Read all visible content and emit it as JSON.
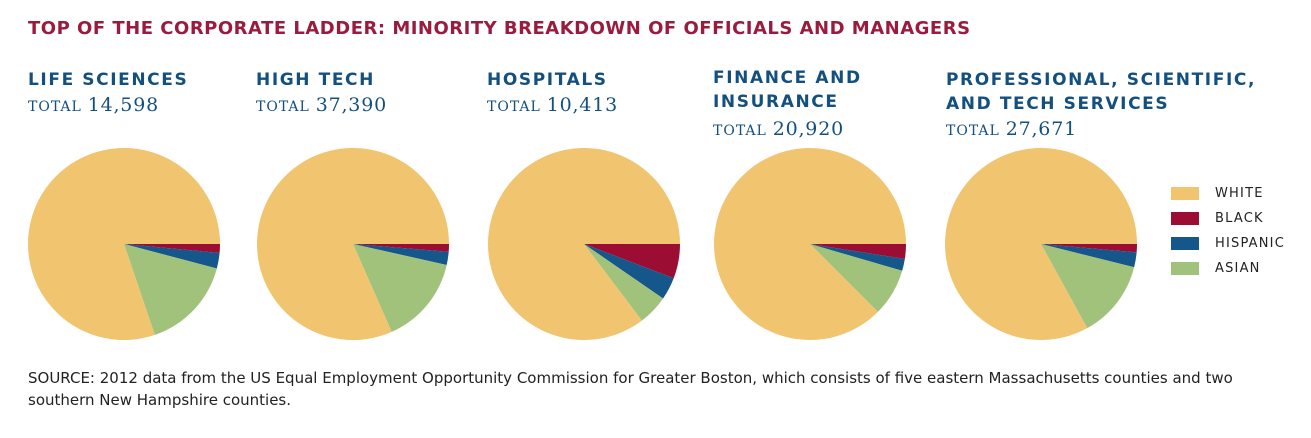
{
  "title": "TOP OF THE CORPORATE LADDER: MINORITY BREAKDOWN OF OFFICIALS AND MANAGERS",
  "total_label": "TOTAL",
  "colors": {
    "White": "#f1c46f",
    "Black": "#9b0d33",
    "Hispanic": "#15578b",
    "Asian": "#a1c27b"
  },
  "legend": {
    "items": [
      {
        "name": "White",
        "label": "WHITE",
        "color": "#f1c46f"
      },
      {
        "name": "Black",
        "label": "BLACK",
        "color": "#9b0d33"
      },
      {
        "name": "Hispanic",
        "label": "HISPANIC",
        "color": "#15578b"
      },
      {
        "name": "Asian",
        "label": "ASIAN",
        "color": "#a1c27b"
      }
    ],
    "placement": "right"
  },
  "chart_data": [
    {
      "type": "pie",
      "title": "LIFE SCIENCES",
      "title_lines": [
        "LIFE SCIENCES"
      ],
      "total": "14,598",
      "categories": [
        "White",
        "Black",
        "Hispanic",
        "Asian"
      ],
      "values": [
        80.2,
        1.5,
        2.6,
        15.7
      ]
    },
    {
      "type": "pie",
      "title": "HIGH TECH",
      "title_lines": [
        "HIGH TECH"
      ],
      "total": "37,390",
      "categories": [
        "White",
        "Black",
        "Hispanic",
        "Asian"
      ],
      "values": [
        81.6,
        1.3,
        2.2,
        14.9
      ]
    },
    {
      "type": "pie",
      "title": "HOSPITALS",
      "title_lines": [
        "HOSPITALS"
      ],
      "total": "10,413",
      "categories": [
        "White",
        "Black",
        "Hispanic",
        "Asian"
      ],
      "values": [
        85.3,
        5.8,
        3.8,
        5.1
      ]
    },
    {
      "type": "pie",
      "title": "FINANCE AND INSURANCE",
      "title_lines": [
        "FINANCE AND",
        "INSURANCE"
      ],
      "total": "20,920",
      "categories": [
        "White",
        "Black",
        "Hispanic",
        "Asian"
      ],
      "values": [
        87.5,
        2.5,
        2.0,
        8.0
      ]
    },
    {
      "type": "pie",
      "title": "PROFESSIONAL, SCIENTIFIC, AND TECH SERVICES",
      "title_lines": [
        "PROFESSIONAL, SCIENTIFIC,",
        "AND TECH SERVICES"
      ],
      "total": "27,671",
      "categories": [
        "White",
        "Black",
        "Hispanic",
        "Asian"
      ],
      "values": [
        83.0,
        1.4,
        2.5,
        13.1
      ]
    }
  ],
  "source": "SOURCE: 2012 data from the US Equal Employment Opportunity Commission for Greater Boston, which consists of five eastern Massachusetts counties and two southern  New Hampshire counties."
}
